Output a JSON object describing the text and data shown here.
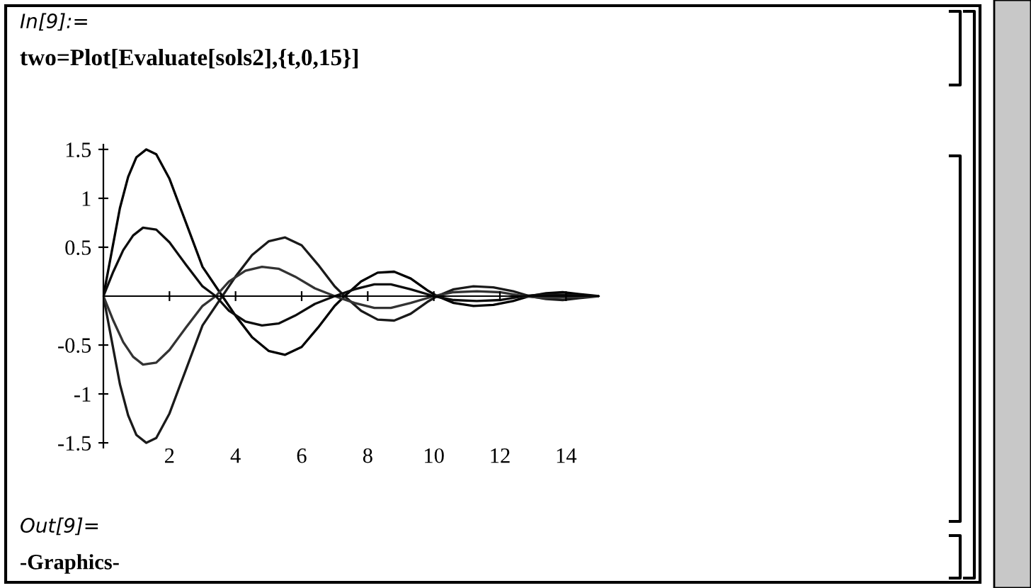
{
  "chart_data": {
    "type": "line",
    "annotations": [
      "In[9]:=",
      "two=Plot[Evaluate[sols2],{t,0,15}]",
      "Out[9]=",
      "-Graphics-"
    ],
    "xlim": [
      0,
      15
    ],
    "ylim": [
      -1.55,
      1.55
    ],
    "xticks": [
      2,
      4,
      6,
      8,
      10,
      12,
      14
    ],
    "yticks": [
      -1.5,
      -1,
      -0.5,
      0.5,
      1,
      1.5
    ],
    "grid": false,
    "legend": false,
    "marker": "none",
    "line_style": "solid",
    "series": [
      {
        "color": "#000000",
        "x": [
          0,
          0.25,
          0.5,
          0.75,
          1.0,
          1.3,
          1.6,
          2.0,
          2.5,
          3.0,
          3.6,
          4.0,
          4.5,
          5.0,
          5.5,
          6.0,
          6.5,
          7.0,
          7.3,
          7.8,
          8.3,
          8.8,
          9.3,
          9.8,
          10.1,
          10.6,
          11.2,
          11.8,
          12.4,
          12.9,
          13.4,
          13.9,
          14.4,
          15
        ],
        "values": [
          0,
          0.45,
          0.9,
          1.22,
          1.42,
          1.5,
          1.45,
          1.2,
          0.75,
          0.3,
          0,
          -0.2,
          -0.42,
          -0.56,
          -0.6,
          -0.52,
          -0.32,
          -0.1,
          0,
          0.15,
          0.24,
          0.25,
          0.18,
          0.06,
          0,
          -0.07,
          -0.1,
          -0.09,
          -0.05,
          0,
          0.03,
          0.04,
          0.02,
          0
        ]
      },
      {
        "color": "#1a1a1a",
        "x": [
          0,
          0.25,
          0.5,
          0.75,
          1.0,
          1.3,
          1.6,
          2.0,
          2.5,
          3.0,
          3.6,
          4.0,
          4.5,
          5.0,
          5.5,
          6.0,
          6.5,
          7.0,
          7.3,
          7.8,
          8.3,
          8.8,
          9.3,
          9.8,
          10.1,
          10.6,
          11.2,
          11.8,
          12.4,
          12.9,
          13.4,
          13.9,
          14.4,
          15
        ],
        "values": [
          0,
          -0.45,
          -0.9,
          -1.22,
          -1.42,
          -1.5,
          -1.45,
          -1.2,
          -0.75,
          -0.3,
          0,
          0.2,
          0.42,
          0.56,
          0.6,
          0.52,
          0.32,
          0.1,
          0,
          -0.15,
          -0.24,
          -0.25,
          -0.18,
          -0.06,
          0,
          0.07,
          0.1,
          0.09,
          0.05,
          0,
          -0.03,
          -0.04,
          -0.02,
          0
        ]
      },
      {
        "color": "#0d0d0d",
        "x": [
          0,
          0.3,
          0.6,
          0.9,
          1.2,
          1.6,
          2.0,
          2.5,
          3.0,
          3.4,
          3.8,
          4.3,
          4.8,
          5.3,
          5.8,
          6.4,
          7.0,
          7.6,
          8.2,
          8.7,
          9.3,
          10.0,
          10.6,
          11.3,
          12.0,
          12.7,
          13.4,
          14.2,
          15
        ],
        "values": [
          0,
          0.25,
          0.47,
          0.62,
          0.7,
          0.68,
          0.55,
          0.32,
          0.1,
          0,
          -0.15,
          -0.26,
          -0.3,
          -0.28,
          -0.2,
          -0.08,
          0,
          0.07,
          0.12,
          0.12,
          0.07,
          0,
          -0.04,
          -0.05,
          -0.04,
          0,
          0.02,
          0.01,
          0
        ]
      },
      {
        "color": "#333333",
        "x": [
          0,
          0.3,
          0.6,
          0.9,
          1.2,
          1.6,
          2.0,
          2.5,
          3.0,
          3.4,
          3.8,
          4.3,
          4.8,
          5.3,
          5.8,
          6.4,
          7.0,
          7.6,
          8.2,
          8.7,
          9.3,
          10.0,
          10.6,
          11.3,
          12.0,
          12.7,
          13.4,
          14.2,
          15
        ],
        "values": [
          0,
          -0.25,
          -0.47,
          -0.62,
          -0.7,
          -0.68,
          -0.55,
          -0.32,
          -0.1,
          0,
          0.15,
          0.26,
          0.3,
          0.28,
          0.2,
          0.08,
          0,
          -0.07,
          -0.12,
          -0.12,
          -0.07,
          0,
          0.04,
          0.05,
          0.04,
          0,
          -0.02,
          -0.01,
          0
        ]
      }
    ]
  }
}
